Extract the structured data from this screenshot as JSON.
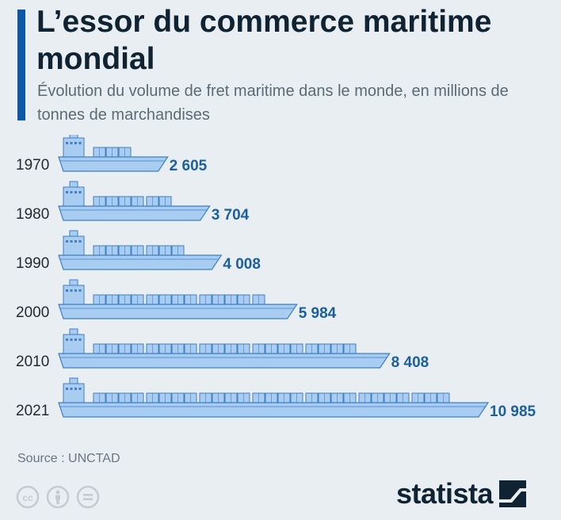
{
  "header": {
    "title": "L’essor du commerce maritime mondial",
    "subtitle": "Évolution du volume de fret maritime dans le monde, en millions de tonnes de marchandises"
  },
  "chart_data": {
    "type": "bar",
    "orientation": "horizontal",
    "categories": [
      "1970",
      "1980",
      "1990",
      "2000",
      "2010",
      "2021"
    ],
    "values": [
      2605,
      3704,
      4008,
      5984,
      8408,
      10985
    ],
    "value_labels": [
      "2 605",
      "3 704",
      "4 008",
      "5 984",
      "8 408",
      "10 985"
    ],
    "title": "L’essor du commerce maritime mondial",
    "xlabel": "",
    "ylabel": "",
    "grid": false,
    "colors": {
      "ship": "#a9ccf1",
      "ship_stroke": "#3f7fc6",
      "label": "#1b5f9e",
      "category": "#1f2a33"
    }
  },
  "footer": {
    "source": "Source : UNCTAD",
    "brand": "statista",
    "license_icons": [
      "cc-icon",
      "attribution-icon",
      "no-derivatives-icon"
    ]
  }
}
